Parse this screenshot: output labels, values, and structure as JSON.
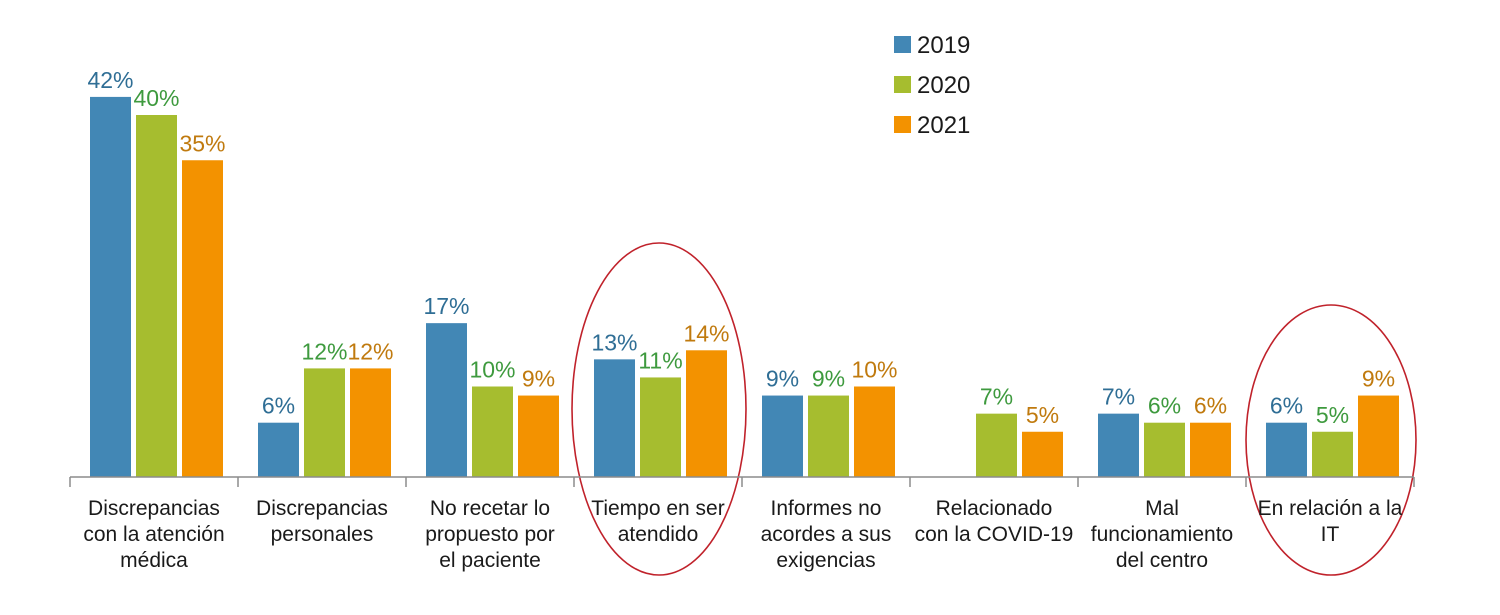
{
  "chart_data": {
    "type": "bar",
    "categories": [
      [
        "Discrepancias",
        "con la atención",
        "médica"
      ],
      [
        "Discrepancias",
        "personales"
      ],
      [
        "No recetar lo",
        "propuesto por",
        "el paciente"
      ],
      [
        "Tiempo en ser",
        "atendido"
      ],
      [
        "Informes no",
        "acordes a sus",
        "exigencias"
      ],
      [
        "Relacionado",
        "con la COVID-19"
      ],
      [
        "Mal",
        "funcionamiento",
        "del centro"
      ],
      [
        "En relación a la",
        "IT"
      ]
    ],
    "series": [
      {
        "name": "2019",
        "color": "#4287b5",
        "label_color": "#2f6e95",
        "values": [
          42,
          6,
          17,
          13,
          9,
          null,
          7,
          6
        ],
        "labels": [
          "42%",
          "6%",
          "17%",
          "13%",
          "9%",
          "",
          "7%",
          "6%"
        ]
      },
      {
        "name": "2020",
        "color": "#a6bd2f",
        "label_color": "#3e9a3e",
        "values": [
          40,
          12,
          10,
          11,
          9,
          7,
          6,
          5
        ],
        "labels": [
          "40%",
          "12%",
          "10%",
          "11%",
          "9%",
          "7%",
          "6%",
          "5%"
        ]
      },
      {
        "name": "2021",
        "color": "#f39200",
        "label_color": "#c07a0e",
        "values": [
          35,
          12,
          9,
          14,
          10,
          5,
          6,
          9
        ],
        "labels": [
          "35%",
          "12%",
          "9%",
          "14%",
          "10%",
          "5%",
          "6%",
          "9%"
        ]
      }
    ],
    "ylim": [
      0,
      48
    ],
    "grid": false,
    "legend": "top-center",
    "highlighted_categories": [
      3,
      7
    ],
    "highlight_color": "#c0222b",
    "axis_color": "#8c8c8c"
  }
}
